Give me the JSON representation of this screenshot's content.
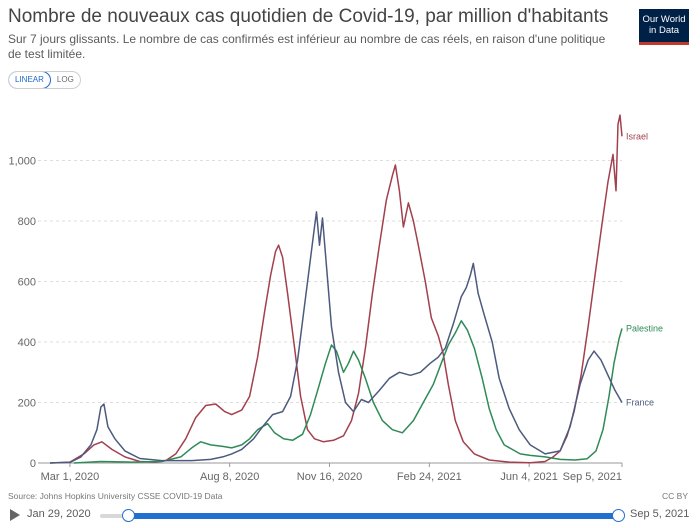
{
  "header": {
    "title": "Nombre de nouveaux cas quotidien de Covid-19, par million d'habitants",
    "subtitle": "Sur 7 jours glissants. Le nombre de cas confirmés est inférieur au nombre de cas réels, en raison d'une politique de test limitée.",
    "logo_line1": "Our World",
    "logo_line2": "in Data"
  },
  "toggle": {
    "linear": "LINEAR",
    "log": "LOG"
  },
  "footer": {
    "source": "Source: Johns Hopkins University CSSE COVID-19 Data",
    "license": "CC BY"
  },
  "timeline": {
    "start": "Jan 29, 2020",
    "end": "Sep 5, 2021"
  },
  "colors": {
    "israel": "#a2404d",
    "palestine": "#2e8b57",
    "france": "#4c5a7e"
  },
  "chart_data": {
    "type": "line",
    "title": "Nombre de nouveaux cas quotidien de Covid-19, par million d'habitants",
    "x_type": "date",
    "xlim": [
      "2020-01-29",
      "2021-09-05"
    ],
    "ylim": [
      0,
      1200
    ],
    "grid": "horizontal",
    "xticks": [
      {
        "date": "2020-03-01",
        "label": "Mar 1, 2020"
      },
      {
        "date": "2020-08-08",
        "label": "Aug 8, 2020"
      },
      {
        "date": "2020-11-16",
        "label": "Nov 16, 2020"
      },
      {
        "date": "2021-02-24",
        "label": "Feb 24, 2021"
      },
      {
        "date": "2021-06-04",
        "label": "Jun 4, 2021"
      },
      {
        "date": "2021-09-05",
        "label": "Sep 5, 2021"
      }
    ],
    "yticks": [
      {
        "value": 0,
        "label": "0"
      },
      {
        "value": 200,
        "label": "200"
      },
      {
        "value": 400,
        "label": "400"
      },
      {
        "value": 600,
        "label": "600"
      },
      {
        "value": 800,
        "label": "800"
      },
      {
        "value": 1000,
        "label": "1,000"
      }
    ],
    "series": [
      {
        "name": "Israel",
        "color": "#a2404d",
        "points": [
          [
            "2020-02-10",
            0
          ],
          [
            "2020-03-01",
            3
          ],
          [
            "2020-03-15",
            30
          ],
          [
            "2020-03-25",
            60
          ],
          [
            "2020-04-02",
            70
          ],
          [
            "2020-04-12",
            45
          ],
          [
            "2020-04-25",
            20
          ],
          [
            "2020-05-10",
            5
          ],
          [
            "2020-05-25",
            3
          ],
          [
            "2020-06-05",
            8
          ],
          [
            "2020-06-15",
            30
          ],
          [
            "2020-06-25",
            80
          ],
          [
            "2020-07-05",
            150
          ],
          [
            "2020-07-15",
            190
          ],
          [
            "2020-07-25",
            195
          ],
          [
            "2020-08-03",
            170
          ],
          [
            "2020-08-10",
            160
          ],
          [
            "2020-08-20",
            175
          ],
          [
            "2020-08-28",
            220
          ],
          [
            "2020-09-05",
            350
          ],
          [
            "2020-09-12",
            500
          ],
          [
            "2020-09-18",
            620
          ],
          [
            "2020-09-23",
            700
          ],
          [
            "2020-09-26",
            720
          ],
          [
            "2020-09-30",
            680
          ],
          [
            "2020-10-05",
            560
          ],
          [
            "2020-10-12",
            380
          ],
          [
            "2020-10-18",
            220
          ],
          [
            "2020-10-25",
            110
          ],
          [
            "2020-11-01",
            80
          ],
          [
            "2020-11-10",
            70
          ],
          [
            "2020-11-20",
            75
          ],
          [
            "2020-11-30",
            90
          ],
          [
            "2020-12-08",
            140
          ],
          [
            "2020-12-15",
            230
          ],
          [
            "2020-12-22",
            380
          ],
          [
            "2020-12-29",
            560
          ],
          [
            "2021-01-05",
            720
          ],
          [
            "2021-01-12",
            870
          ],
          [
            "2021-01-18",
            950
          ],
          [
            "2021-01-21",
            985
          ],
          [
            "2021-01-25",
            900
          ],
          [
            "2021-01-29",
            780
          ],
          [
            "2021-02-03",
            860
          ],
          [
            "2021-02-08",
            800
          ],
          [
            "2021-02-13",
            720
          ],
          [
            "2021-02-20",
            600
          ],
          [
            "2021-02-26",
            480
          ],
          [
            "2021-03-05",
            420
          ],
          [
            "2021-03-10",
            360
          ],
          [
            "2021-03-15",
            260
          ],
          [
            "2021-03-22",
            140
          ],
          [
            "2021-03-30",
            70
          ],
          [
            "2021-04-10",
            30
          ],
          [
            "2021-04-25",
            10
          ],
          [
            "2021-05-15",
            3
          ],
          [
            "2021-06-05",
            1
          ],
          [
            "2021-06-20",
            5
          ],
          [
            "2021-06-28",
            20
          ],
          [
            "2021-07-05",
            40
          ],
          [
            "2021-07-12",
            90
          ],
          [
            "2021-07-19",
            170
          ],
          [
            "2021-07-26",
            290
          ],
          [
            "2021-08-02",
            450
          ],
          [
            "2021-08-09",
            620
          ],
          [
            "2021-08-16",
            790
          ],
          [
            "2021-08-22",
            930
          ],
          [
            "2021-08-27",
            1020
          ],
          [
            "2021-08-30",
            900
          ],
          [
            "2021-09-01",
            1120
          ],
          [
            "2021-09-03",
            1150
          ],
          [
            "2021-09-05",
            1080
          ]
        ]
      },
      {
        "name": "Palestine",
        "color": "#2e8b57",
        "points": [
          [
            "2020-03-05",
            0
          ],
          [
            "2020-04-01",
            5
          ],
          [
            "2020-05-01",
            3
          ],
          [
            "2020-06-01",
            5
          ],
          [
            "2020-06-20",
            20
          ],
          [
            "2020-07-01",
            50
          ],
          [
            "2020-07-10",
            70
          ],
          [
            "2020-07-20",
            60
          ],
          [
            "2020-08-01",
            55
          ],
          [
            "2020-08-10",
            50
          ],
          [
            "2020-08-20",
            60
          ],
          [
            "2020-08-28",
            80
          ],
          [
            "2020-09-05",
            110
          ],
          [
            "2020-09-15",
            130
          ],
          [
            "2020-09-22",
            100
          ],
          [
            "2020-10-01",
            80
          ],
          [
            "2020-10-10",
            75
          ],
          [
            "2020-10-20",
            95
          ],
          [
            "2020-10-28",
            160
          ],
          [
            "2020-11-05",
            250
          ],
          [
            "2020-11-12",
            330
          ],
          [
            "2020-11-18",
            390
          ],
          [
            "2020-11-23",
            370
          ],
          [
            "2020-11-30",
            300
          ],
          [
            "2020-12-05",
            330
          ],
          [
            "2020-12-10",
            370
          ],
          [
            "2020-12-15",
            340
          ],
          [
            "2020-12-22",
            280
          ],
          [
            "2020-12-30",
            200
          ],
          [
            "2021-01-08",
            140
          ],
          [
            "2021-01-18",
            110
          ],
          [
            "2021-01-28",
            100
          ],
          [
            "2021-02-08",
            140
          ],
          [
            "2021-02-18",
            200
          ],
          [
            "2021-02-28",
            260
          ],
          [
            "2021-03-08",
            330
          ],
          [
            "2021-03-15",
            390
          ],
          [
            "2021-03-22",
            430
          ],
          [
            "2021-03-28",
            470
          ],
          [
            "2021-04-03",
            440
          ],
          [
            "2021-04-10",
            380
          ],
          [
            "2021-04-18",
            280
          ],
          [
            "2021-04-25",
            180
          ],
          [
            "2021-05-02",
            110
          ],
          [
            "2021-05-10",
            60
          ],
          [
            "2021-05-18",
            45
          ],
          [
            "2021-05-26",
            30
          ],
          [
            "2021-06-05",
            25
          ],
          [
            "2021-06-20",
            20
          ],
          [
            "2021-07-05",
            12
          ],
          [
            "2021-07-20",
            10
          ],
          [
            "2021-08-01",
            14
          ],
          [
            "2021-08-10",
            40
          ],
          [
            "2021-08-17",
            110
          ],
          [
            "2021-08-23",
            220
          ],
          [
            "2021-08-28",
            330
          ],
          [
            "2021-09-02",
            410
          ],
          [
            "2021-09-05",
            445
          ]
        ]
      },
      {
        "name": "France",
        "color": "#4c5a7e",
        "points": [
          [
            "2020-02-10",
            0
          ],
          [
            "2020-03-01",
            2
          ],
          [
            "2020-03-12",
            20
          ],
          [
            "2020-03-22",
            60
          ],
          [
            "2020-03-28",
            110
          ],
          [
            "2020-04-01",
            185
          ],
          [
            "2020-04-04",
            195
          ],
          [
            "2020-04-08",
            120
          ],
          [
            "2020-04-15",
            80
          ],
          [
            "2020-04-25",
            40
          ],
          [
            "2020-05-10",
            15
          ],
          [
            "2020-06-01",
            8
          ],
          [
            "2020-07-01",
            8
          ],
          [
            "2020-07-20",
            12
          ],
          [
            "2020-08-01",
            20
          ],
          [
            "2020-08-10",
            30
          ],
          [
            "2020-08-20",
            45
          ],
          [
            "2020-09-01",
            80
          ],
          [
            "2020-09-10",
            120
          ],
          [
            "2020-09-20",
            160
          ],
          [
            "2020-09-30",
            170
          ],
          [
            "2020-10-08",
            220
          ],
          [
            "2020-10-15",
            340
          ],
          [
            "2020-10-22",
            520
          ],
          [
            "2020-10-27",
            650
          ],
          [
            "2020-11-01",
            780
          ],
          [
            "2020-11-03",
            830
          ],
          [
            "2020-11-06",
            720
          ],
          [
            "2020-11-09",
            810
          ],
          [
            "2020-11-13",
            650
          ],
          [
            "2020-11-18",
            450
          ],
          [
            "2020-11-25",
            300
          ],
          [
            "2020-12-02",
            200
          ],
          [
            "2020-12-10",
            170
          ],
          [
            "2020-12-18",
            210
          ],
          [
            "2020-12-25",
            200
          ],
          [
            "2021-01-05",
            240
          ],
          [
            "2021-01-15",
            280
          ],
          [
            "2021-01-25",
            300
          ],
          [
            "2021-02-05",
            290
          ],
          [
            "2021-02-15",
            300
          ],
          [
            "2021-02-25",
            330
          ],
          [
            "2021-03-05",
            350
          ],
          [
            "2021-03-12",
            380
          ],
          [
            "2021-03-20",
            460
          ],
          [
            "2021-03-28",
            550
          ],
          [
            "2021-04-02",
            580
          ],
          [
            "2021-04-06",
            620
          ],
          [
            "2021-04-09",
            660
          ],
          [
            "2021-04-14",
            560
          ],
          [
            "2021-04-20",
            490
          ],
          [
            "2021-04-28",
            400
          ],
          [
            "2021-05-05",
            280
          ],
          [
            "2021-05-15",
            180
          ],
          [
            "2021-05-25",
            110
          ],
          [
            "2021-06-05",
            60
          ],
          [
            "2021-06-20",
            30
          ],
          [
            "2021-07-05",
            40
          ],
          [
            "2021-07-15",
            120
          ],
          [
            "2021-07-25",
            260
          ],
          [
            "2021-08-02",
            340
          ],
          [
            "2021-08-08",
            370
          ],
          [
            "2021-08-15",
            340
          ],
          [
            "2021-08-22",
            290
          ],
          [
            "2021-08-29",
            240
          ],
          [
            "2021-09-05",
            200
          ]
        ]
      }
    ]
  }
}
